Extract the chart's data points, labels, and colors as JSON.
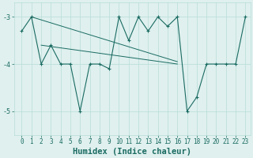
{
  "xlabel": "Humidex (Indice chaleur)",
  "x": [
    0,
    1,
    2,
    3,
    4,
    5,
    6,
    7,
    8,
    9,
    10,
    11,
    12,
    13,
    14,
    15,
    16,
    17,
    18,
    19,
    20,
    21,
    22,
    23
  ],
  "y": [
    -3.3,
    -3.0,
    -4.0,
    -3.6,
    -4.0,
    -4.0,
    -5.0,
    -4.0,
    -4.0,
    -4.1,
    -3.0,
    -3.5,
    -3.0,
    -3.3,
    -3.0,
    -3.2,
    -3.0,
    -5.0,
    -4.7,
    -4.0,
    -4.0,
    -4.0,
    -4.0,
    -3.0
  ],
  "trendline1_x": [
    1,
    16
  ],
  "trendline1_y": [
    -3.0,
    -3.95
  ],
  "trendline2_x": [
    2,
    16
  ],
  "trendline2_y": [
    -3.6,
    -4.0
  ],
  "ylim": [
    -5.5,
    -2.7
  ],
  "yticks": [
    -5,
    -4,
    -3
  ],
  "xticks": [
    0,
    1,
    2,
    3,
    4,
    5,
    6,
    7,
    8,
    9,
    10,
    11,
    12,
    13,
    14,
    15,
    16,
    17,
    18,
    19,
    20,
    21,
    22,
    23
  ],
  "line_color": "#1a6b62",
  "bg_color": "#dff0ee",
  "grid_color": "#b8ddd9",
  "tick_label_size": 5.5,
  "xlabel_size": 7.5
}
